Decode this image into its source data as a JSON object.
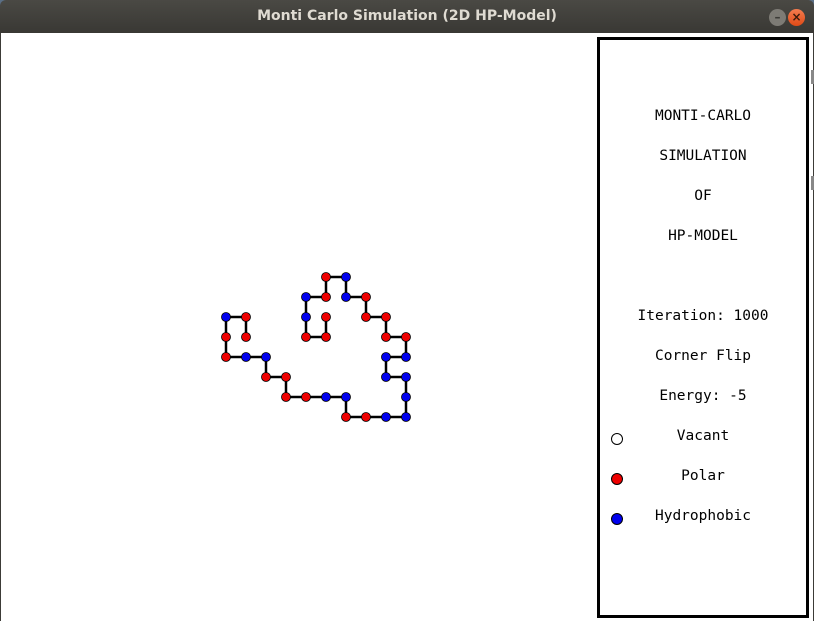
{
  "window": {
    "title": "Monti Carlo Simulation (2D HP-Model)",
    "minimize_glyph": "–",
    "close_glyph": "×"
  },
  "panel": {
    "heading_lines": [
      "MONTI-CARLO",
      "SIMULATION",
      "OF",
      "HP-MODEL"
    ],
    "iteration_text": "Iteration: 1000",
    "move_text": "Corner Flip",
    "energy_text": "Energy: -5",
    "legend": [
      {
        "label": "Vacant",
        "icon": "vacant-dot-icon",
        "color": "#ffffff"
      },
      {
        "label": "Polar",
        "icon": "polar-dot-icon",
        "color": "#ee0000"
      },
      {
        "label": "Hydrophobic",
        "icon": "hydrophobic-dot-icon",
        "color": "#0000ee"
      }
    ]
  },
  "colors": {
    "polar": "#ee0000",
    "hydrophobic": "#0000ee",
    "bond": "#000000"
  },
  "protein_chain": [
    {
      "col": 1,
      "row": 1,
      "type": "P"
    },
    {
      "col": 1,
      "row": 0,
      "type": "P"
    },
    {
      "col": 0,
      "row": 0,
      "type": "H"
    },
    {
      "col": 0,
      "row": 1,
      "type": "P"
    },
    {
      "col": 0,
      "row": 2,
      "type": "P"
    },
    {
      "col": 1,
      "row": 2,
      "type": "H"
    },
    {
      "col": 2,
      "row": 2,
      "type": "H"
    },
    {
      "col": 2,
      "row": 3,
      "type": "P"
    },
    {
      "col": 3,
      "row": 3,
      "type": "P"
    },
    {
      "col": 3,
      "row": 4,
      "type": "P"
    },
    {
      "col": 4,
      "row": 4,
      "type": "P"
    },
    {
      "col": 5,
      "row": 4,
      "type": "H"
    },
    {
      "col": 6,
      "row": 4,
      "type": "H"
    },
    {
      "col": 6,
      "row": 5,
      "type": "P"
    },
    {
      "col": 7,
      "row": 5,
      "type": "P"
    },
    {
      "col": 8,
      "row": 5,
      "type": "H"
    },
    {
      "col": 9,
      "row": 5,
      "type": "H"
    },
    {
      "col": 9,
      "row": 4,
      "type": "H"
    },
    {
      "col": 9,
      "row": 3,
      "type": "H"
    },
    {
      "col": 8,
      "row": 3,
      "type": "H"
    },
    {
      "col": 8,
      "row": 2,
      "type": "H"
    },
    {
      "col": 9,
      "row": 2,
      "type": "H"
    },
    {
      "col": 9,
      "row": 1,
      "type": "P"
    },
    {
      "col": 8,
      "row": 1,
      "type": "P"
    },
    {
      "col": 8,
      "row": 0,
      "type": "P"
    },
    {
      "col": 7,
      "row": 0,
      "type": "P"
    },
    {
      "col": 7,
      "row": -1,
      "type": "P"
    },
    {
      "col": 6,
      "row": -1,
      "type": "H"
    },
    {
      "col": 6,
      "row": -2,
      "type": "H"
    },
    {
      "col": 5,
      "row": -2,
      "type": "P"
    },
    {
      "col": 5,
      "row": -1,
      "type": "P"
    },
    {
      "col": 4,
      "row": -1,
      "type": "H"
    },
    {
      "col": 4,
      "row": 0,
      "type": "H"
    },
    {
      "col": 4,
      "row": 1,
      "type": "P"
    },
    {
      "col": 5,
      "row": 1,
      "type": "P"
    },
    {
      "col": 5,
      "row": 0,
      "type": "P"
    }
  ]
}
